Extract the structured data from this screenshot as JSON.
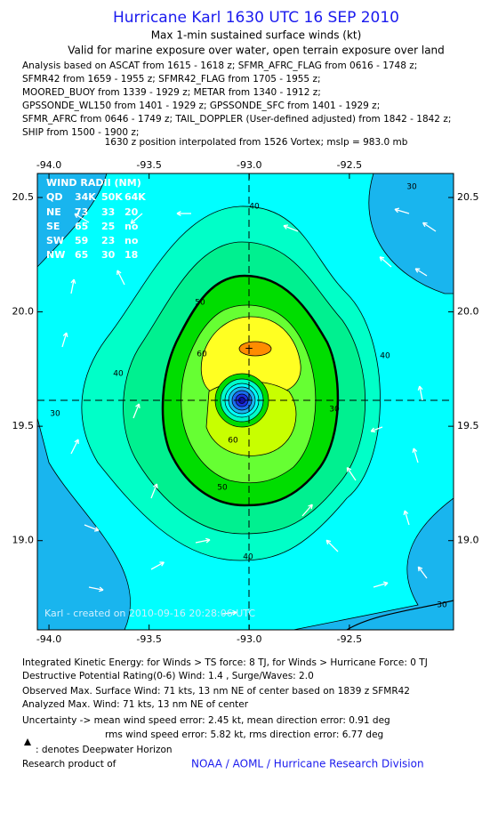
{
  "header": {
    "title": "Hurricane Karl 1630 UTC 16 SEP 2010",
    "subtitle": "Max 1-min sustained surface winds (kt)",
    "validity": "Valid for marine exposure over water, open terrain exposure over land",
    "analysis_lines": [
      "Analysis based on ASCAT from 1615 - 1618 z; SFMR_AFRC_FLAG from 0616 - 1748 z;",
      "SFMR42 from 1659 - 1955 z; SFMR42_FLAG from 1705 - 1955 z;",
      "MOORED_BUOY from 1339 - 1929 z; METAR from 1340 - 1912 z;",
      "GPSSONDE_WL150 from 1401 - 1929 z; GPSSONDE_SFC from 1401 - 1929 z;",
      "SFMR_AFRC from 0646 - 1749 z; TAIL_DOPPLER (User-defined adjusted) from 1842 - 1842 z;",
      "SHIP from 1500 - 1900 z;"
    ],
    "position_note": "1630 z position interpolated from 1526 Vortex; mslp = 983.0 mb"
  },
  "map": {
    "xlim": [
      -94.058,
      -91.98
    ],
    "ylim": [
      18.61,
      20.605
    ],
    "xticks": [
      {
        "value": -94,
        "label": "-94.0"
      },
      {
        "value": -93.5,
        "label": "-93.5"
      },
      {
        "value": -93,
        "label": "-93.0"
      },
      {
        "value": -92.5,
        "label": "-92.5"
      }
    ],
    "yticks": [
      {
        "value": 20.5,
        "label": "20.5"
      },
      {
        "value": 20,
        "label": "20.0"
      },
      {
        "value": 19.5,
        "label": "19.5"
      },
      {
        "value": 19,
        "label": "19.0"
      }
    ],
    "wind_radii": {
      "title": "WIND RADII (NM)",
      "header": [
        "QD",
        "34K",
        "50K",
        "64K"
      ],
      "rows": [
        [
          "NE",
          73,
          33,
          20
        ],
        [
          "SE",
          65,
          25,
          "no"
        ],
        [
          "SW",
          59,
          23,
          "no"
        ],
        [
          "NW",
          65,
          30,
          18
        ]
      ]
    },
    "contour_labels": [
      40,
      40,
      40,
      40,
      50,
      50,
      60,
      60,
      30,
      30,
      30,
      30
    ],
    "credit": "Karl - created on 2010-09-16 20:28:06 UTC"
  },
  "footer": {
    "lines": [
      "Integrated Kinetic Energy:  for Winds > TS force: 8 TJ,  for Winds > Hurricane Force: 0 TJ",
      "Destructive Potential Rating(0-6)   Wind: 1.4 , Surge/Waves: 2.0",
      "Observed Max. Surface Wind: 71 kts, 13 nm NE of center based on 1839 z SFMR42",
      "Analyzed Max. Wind: 71 kts, 13 nm NE of center",
      "Uncertainty -> mean wind speed error: 2.45 kt,   mean direction error: 0.91 deg",
      "rms wind speed error: 5.82 kt,   rms direction error: 6.77 deg"
    ],
    "legend": ": denotes Deepwater Horizon",
    "research": "Research product of",
    "organization": "NOAA / AOML / Hurricane Research Division"
  }
}
